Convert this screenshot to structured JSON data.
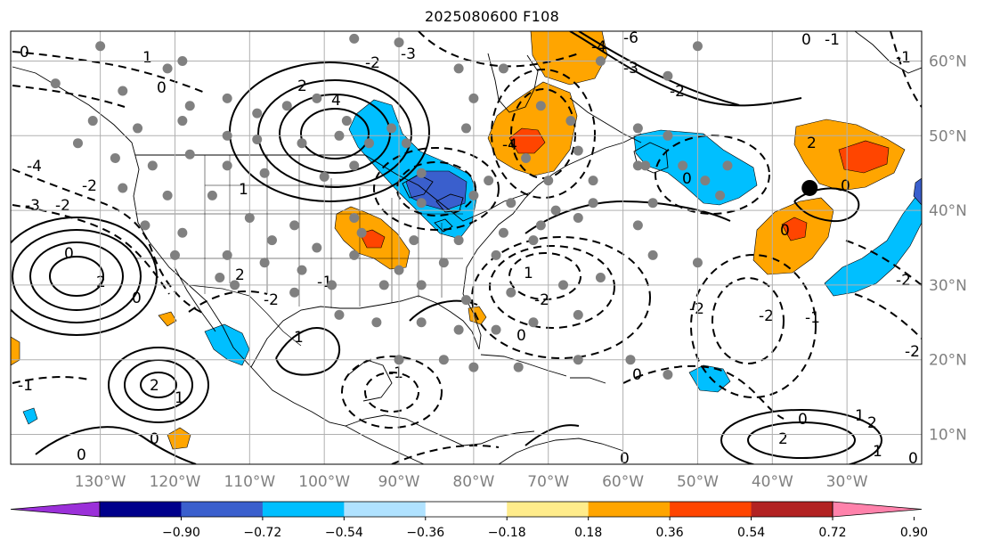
{
  "title": "2025080600 F108",
  "map": {
    "projection": "equirectangular",
    "lon_range": [
      -142,
      -20
    ],
    "lat_range": [
      6,
      64
    ],
    "lon_ticks": [
      {
        "value": -130,
        "label": "130°W"
      },
      {
        "value": -120,
        "label": "120°W"
      },
      {
        "value": -110,
        "label": "110°W"
      },
      {
        "value": -100,
        "label": "100°W"
      },
      {
        "value": -90,
        "label": "90°W"
      },
      {
        "value": -80,
        "label": "80°W"
      },
      {
        "value": -70,
        "label": "70°W"
      },
      {
        "value": -60,
        "label": "60°W"
      },
      {
        "value": -50,
        "label": "50°W"
      },
      {
        "value": -40,
        "label": "40°W"
      },
      {
        "value": -30,
        "label": "30°W"
      }
    ],
    "lat_ticks": [
      {
        "value": 60,
        "label": "60°N"
      },
      {
        "value": 50,
        "label": "50°N"
      },
      {
        "value": 40,
        "label": "40°N"
      },
      {
        "value": 30,
        "label": "30°N"
      },
      {
        "value": 20,
        "label": "20°N"
      },
      {
        "value": 10,
        "label": "10°N"
      }
    ],
    "grid": true,
    "tick_label_color": "#808080",
    "grid_color": "#b0b0b0"
  },
  "colorbar": {
    "colors": [
      "#9b30d9",
      "#00008b",
      "#3a5fcd",
      "#00bfff",
      "#b0e2ff",
      "#ffffff",
      "#ffec8b",
      "#ffa500",
      "#ff4500",
      "#b22222",
      "#ff82ab"
    ],
    "ticks": [
      "−0.90",
      "−0.72",
      "−0.54",
      "−0.36",
      "−0.18",
      "0.18",
      "0.36",
      "0.54",
      "0.72",
      "0.90"
    ],
    "extend": "both"
  },
  "markers": {
    "large_black_dot": {
      "lon": -35,
      "lat": 43,
      "color": "#000000"
    },
    "gray_dots_color": "#808080",
    "gray_dots": [
      [
        -130,
        62
      ],
      [
        -119,
        60
      ],
      [
        -96,
        63
      ],
      [
        -90,
        62.5
      ],
      [
        -82,
        59
      ],
      [
        -76,
        59
      ],
      [
        -63,
        60
      ],
      [
        -50,
        62
      ],
      [
        -136,
        57
      ],
      [
        -127,
        56
      ],
      [
        -121,
        59
      ],
      [
        -118,
        54
      ],
      [
        -113,
        55
      ],
      [
        -109,
        53
      ],
      [
        -105,
        54
      ],
      [
        -101,
        55
      ],
      [
        -97,
        52
      ],
      [
        -94,
        49
      ],
      [
        -91,
        51
      ],
      [
        -80,
        55
      ],
      [
        -71,
        54
      ],
      [
        -67,
        52
      ],
      [
        -58,
        51
      ],
      [
        -54,
        50
      ],
      [
        -54,
        58
      ],
      [
        -131,
        52
      ],
      [
        -125,
        51
      ],
      [
        -119,
        52
      ],
      [
        -113,
        50
      ],
      [
        -109,
        49.5
      ],
      [
        -103,
        49
      ],
      [
        -98,
        50
      ],
      [
        -89,
        49
      ],
      [
        -81,
        51
      ],
      [
        -73,
        47
      ],
      [
        -66,
        48
      ],
      [
        -58,
        46
      ],
      [
        -52,
        46
      ],
      [
        -46,
        46
      ],
      [
        -133,
        49
      ],
      [
        -128,
        47
      ],
      [
        -123,
        46
      ],
      [
        -118,
        47.5
      ],
      [
        -113,
        46
      ],
      [
        -108,
        45
      ],
      [
        -100,
        44.5
      ],
      [
        -96,
        46
      ],
      [
        -87,
        45
      ],
      [
        -78,
        44
      ],
      [
        -70,
        44
      ],
      [
        -64,
        44
      ],
      [
        -57,
        46
      ],
      [
        -49,
        44
      ],
      [
        -127,
        43
      ],
      [
        -121,
        42
      ],
      [
        -115,
        42
      ],
      [
        -110,
        39
      ],
      [
        -104,
        38
      ],
      [
        -96,
        39
      ],
      [
        -87,
        41
      ],
      [
        -80,
        42
      ],
      [
        -75,
        41
      ],
      [
        -69,
        40
      ],
      [
        -64,
        41
      ],
      [
        -56,
        41
      ],
      [
        -47,
        42
      ],
      [
        -124,
        38
      ],
      [
        -119,
        37
      ],
      [
        -113,
        34
      ],
      [
        -107,
        36
      ],
      [
        -101,
        35
      ],
      [
        -95,
        37
      ],
      [
        -88,
        36
      ],
      [
        -82,
        36
      ],
      [
        -76,
        37
      ],
      [
        -71,
        38
      ],
      [
        -66,
        39
      ],
      [
        -58,
        38
      ],
      [
        -120,
        34
      ],
      [
        -114,
        31
      ],
      [
        -108,
        33
      ],
      [
        -103,
        32
      ],
      [
        -96,
        34
      ],
      [
        -90,
        32
      ],
      [
        -84,
        33
      ],
      [
        -77,
        34
      ],
      [
        -72,
        36
      ],
      [
        -56,
        34
      ],
      [
        -112,
        30
      ],
      [
        -104,
        29
      ],
      [
        -99,
        30
      ],
      [
        -92,
        30
      ],
      [
        -87,
        30
      ],
      [
        -81,
        28
      ],
      [
        -75,
        29
      ],
      [
        -68,
        30
      ],
      [
        -63,
        31
      ],
      [
        -50,
        33
      ],
      [
        -98,
        26
      ],
      [
        -93,
        25
      ],
      [
        -87,
        25
      ],
      [
        -82,
        24
      ],
      [
        -77,
        24
      ],
      [
        -72,
        25
      ],
      [
        -66,
        26
      ],
      [
        -90,
        20
      ],
      [
        -84,
        20
      ],
      [
        -80,
        19
      ],
      [
        -74,
        19
      ],
      [
        -66,
        20
      ],
      [
        -59,
        20
      ],
      [
        -54,
        18
      ]
    ]
  }
}
